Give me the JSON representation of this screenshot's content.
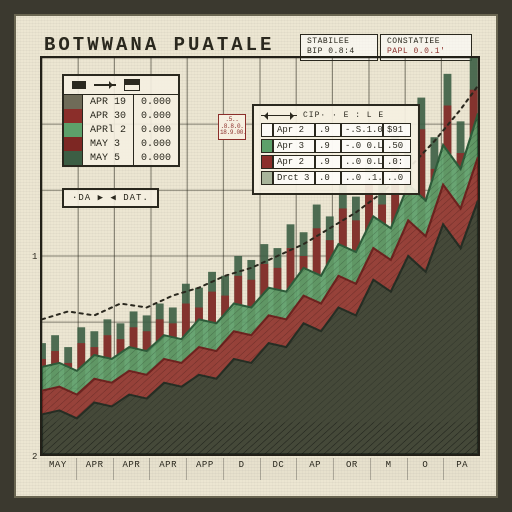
{
  "title": "BOTWWANA  PUATALE",
  "badges": {
    "a": {
      "l1": "STABILEE",
      "l2": "BIP 0.8:4"
    },
    "b": {
      "l1": "CONSTATIEE",
      "l2": "PAPL 0.0.1'"
    }
  },
  "legend1": {
    "rows": [
      {
        "label": "APR 19",
        "val": "0.000",
        "color": "#6f6b58"
      },
      {
        "label": "APR 30",
        "val": "0.000",
        "color": "#8b2e2a"
      },
      {
        "label": "APRl  2",
        "val": "0.000",
        "color": "#5da06a"
      },
      {
        "label": "MAY  3",
        "val": "0.000",
        "color": "#7d2723"
      },
      {
        "label": "MAY  5",
        "val": "0.000",
        "color": "#3c5e44"
      }
    ]
  },
  "legend2": {
    "hdr": "CIP· · E :  L E",
    "rows": [
      {
        "a": "Apr  2",
        "b": ".9",
        "c": "-.S.1.00",
        "d": "$91"
      },
      {
        "a": "Apr  3",
        "b": ".9",
        "c": "-.0 0.L0",
        "d": ".50"
      },
      {
        "a": "Apr  2",
        "b": ".9",
        "c": "..0 0.L..",
        "d": ".0:"
      },
      {
        "a": "Drct  3",
        "b": ".0",
        "c": "..0 .1.0.",
        "d": "..0"
      }
    ]
  },
  "redcal": ".5.. .8.8.0. 18.9.00.",
  "da_label": "·DA ▶   ◀ DAT.",
  "chart": {
    "type": "stacked-area-plus-bars",
    "background_color": "#ece6d2",
    "grid_color": "#2a281e",
    "grid_alpha": 0.55,
    "xlim": [
      0,
      100
    ],
    "ylim": [
      0,
      100
    ],
    "grid_x": [
      0,
      8.3,
      16.6,
      25,
      33.3,
      41.6,
      50,
      58.3,
      66.6,
      75,
      83.3,
      91.6,
      100
    ],
    "grid_y": [
      0,
      16.6,
      33.3,
      50,
      66.6,
      83.3,
      100
    ],
    "y_ticks": [
      {
        "pos": 0,
        "label": "2"
      },
      {
        "pos": 50,
        "label": "1"
      }
    ],
    "x_ticks": [
      "MAY",
      "APR",
      "APR",
      "APR",
      "APP",
      "D",
      "DC",
      "AP",
      "OR",
      "M",
      "O",
      "PA"
    ],
    "series_bars": {
      "color": "#3c5e44",
      "points": [
        [
          0,
          28
        ],
        [
          3,
          30
        ],
        [
          6,
          27
        ],
        [
          9,
          32
        ],
        [
          12,
          31
        ],
        [
          15,
          34
        ],
        [
          18,
          33
        ],
        [
          21,
          36
        ],
        [
          24,
          35
        ],
        [
          27,
          38
        ],
        [
          30,
          37
        ],
        [
          33,
          43
        ],
        [
          36,
          42
        ],
        [
          39,
          46
        ],
        [
          42,
          45
        ],
        [
          45,
          50
        ],
        [
          48,
          49
        ],
        [
          51,
          53
        ],
        [
          54,
          52
        ],
        [
          57,
          58
        ],
        [
          60,
          56
        ],
        [
          63,
          63
        ],
        [
          66,
          60
        ],
        [
          69,
          68
        ],
        [
          72,
          65
        ],
        [
          75,
          75
        ],
        [
          78,
          70
        ],
        [
          81,
          82
        ],
        [
          84,
          76
        ],
        [
          87,
          90
        ],
        [
          90,
          80
        ],
        [
          93,
          96
        ],
        [
          96,
          84
        ],
        [
          99,
          100
        ]
      ]
    },
    "series_bars2": {
      "color": "#8b2e2a",
      "points": [
        [
          0,
          24
        ],
        [
          3,
          26
        ],
        [
          6,
          23
        ],
        [
          9,
          28
        ],
        [
          12,
          27
        ],
        [
          15,
          30
        ],
        [
          18,
          29
        ],
        [
          21,
          32
        ],
        [
          24,
          31
        ],
        [
          27,
          34
        ],
        [
          30,
          33
        ],
        [
          33,
          38
        ],
        [
          36,
          37
        ],
        [
          39,
          41
        ],
        [
          42,
          40
        ],
        [
          45,
          45
        ],
        [
          48,
          44
        ],
        [
          51,
          48
        ],
        [
          54,
          47
        ],
        [
          57,
          52
        ],
        [
          60,
          50
        ],
        [
          63,
          57
        ],
        [
          66,
          54
        ],
        [
          69,
          62
        ],
        [
          72,
          59
        ],
        [
          75,
          68
        ],
        [
          78,
          63
        ],
        [
          81,
          75
        ],
        [
          84,
          69
        ],
        [
          87,
          82
        ],
        [
          90,
          72
        ],
        [
          93,
          88
        ],
        [
          96,
          76
        ],
        [
          99,
          92
        ]
      ]
    },
    "area_upper": {
      "fill": "#5da06a",
      "stroke": "#2e5c3a",
      "points": [
        [
          0,
          22
        ],
        [
          4,
          23
        ],
        [
          8,
          21
        ],
        [
          12,
          25
        ],
        [
          16,
          24
        ],
        [
          20,
          27
        ],
        [
          24,
          26
        ],
        [
          28,
          30
        ],
        [
          32,
          29
        ],
        [
          36,
          34
        ],
        [
          40,
          33
        ],
        [
          44,
          38
        ],
        [
          48,
          37
        ],
        [
          52,
          42
        ],
        [
          56,
          41
        ],
        [
          60,
          47
        ],
        [
          64,
          45
        ],
        [
          68,
          53
        ],
        [
          72,
          51
        ],
        [
          76,
          60
        ],
        [
          80,
          57
        ],
        [
          84,
          68
        ],
        [
          88,
          64
        ],
        [
          92,
          78
        ],
        [
          96,
          72
        ],
        [
          100,
          86
        ]
      ]
    },
    "area_mid": {
      "fill": "#9b3a35",
      "stroke": "#6d231f",
      "points": [
        [
          0,
          16
        ],
        [
          4,
          17
        ],
        [
          8,
          15
        ],
        [
          12,
          19
        ],
        [
          16,
          18
        ],
        [
          20,
          21
        ],
        [
          24,
          20
        ],
        [
          28,
          24
        ],
        [
          32,
          23
        ],
        [
          36,
          27
        ],
        [
          40,
          26
        ],
        [
          44,
          31
        ],
        [
          48,
          30
        ],
        [
          52,
          35
        ],
        [
          56,
          34
        ],
        [
          60,
          40
        ],
        [
          64,
          38
        ],
        [
          68,
          45
        ],
        [
          72,
          43
        ],
        [
          76,
          52
        ],
        [
          80,
          49
        ],
        [
          84,
          59
        ],
        [
          88,
          55
        ],
        [
          92,
          68
        ],
        [
          96,
          62
        ],
        [
          100,
          75
        ]
      ]
    },
    "area_lower": {
      "fill": "#3e4a3a",
      "stroke": "#262e24",
      "points": [
        [
          0,
          10
        ],
        [
          4,
          11
        ],
        [
          8,
          9
        ],
        [
          12,
          13
        ],
        [
          16,
          12
        ],
        [
          20,
          15
        ],
        [
          24,
          14
        ],
        [
          28,
          18
        ],
        [
          32,
          17
        ],
        [
          36,
          20
        ],
        [
          40,
          19
        ],
        [
          44,
          24
        ],
        [
          48,
          23
        ],
        [
          52,
          28
        ],
        [
          56,
          27
        ],
        [
          60,
          33
        ],
        [
          64,
          31
        ],
        [
          68,
          37
        ],
        [
          72,
          35
        ],
        [
          76,
          44
        ],
        [
          80,
          41
        ],
        [
          84,
          50
        ],
        [
          88,
          46
        ],
        [
          92,
          58
        ],
        [
          96,
          52
        ],
        [
          100,
          64
        ]
      ]
    },
    "dotted_line": {
      "stroke": "#2a281e",
      "points": [
        [
          0,
          34
        ],
        [
          6,
          36
        ],
        [
          12,
          35
        ],
        [
          18,
          38
        ],
        [
          24,
          37
        ],
        [
          30,
          40
        ],
        [
          36,
          42
        ],
        [
          42,
          45
        ],
        [
          48,
          47
        ],
        [
          54,
          50
        ],
        [
          60,
          53
        ],
        [
          66,
          57
        ],
        [
          72,
          61
        ],
        [
          78,
          66
        ],
        [
          84,
          72
        ],
        [
          90,
          79
        ],
        [
          96,
          87
        ],
        [
          100,
          93
        ]
      ]
    }
  }
}
